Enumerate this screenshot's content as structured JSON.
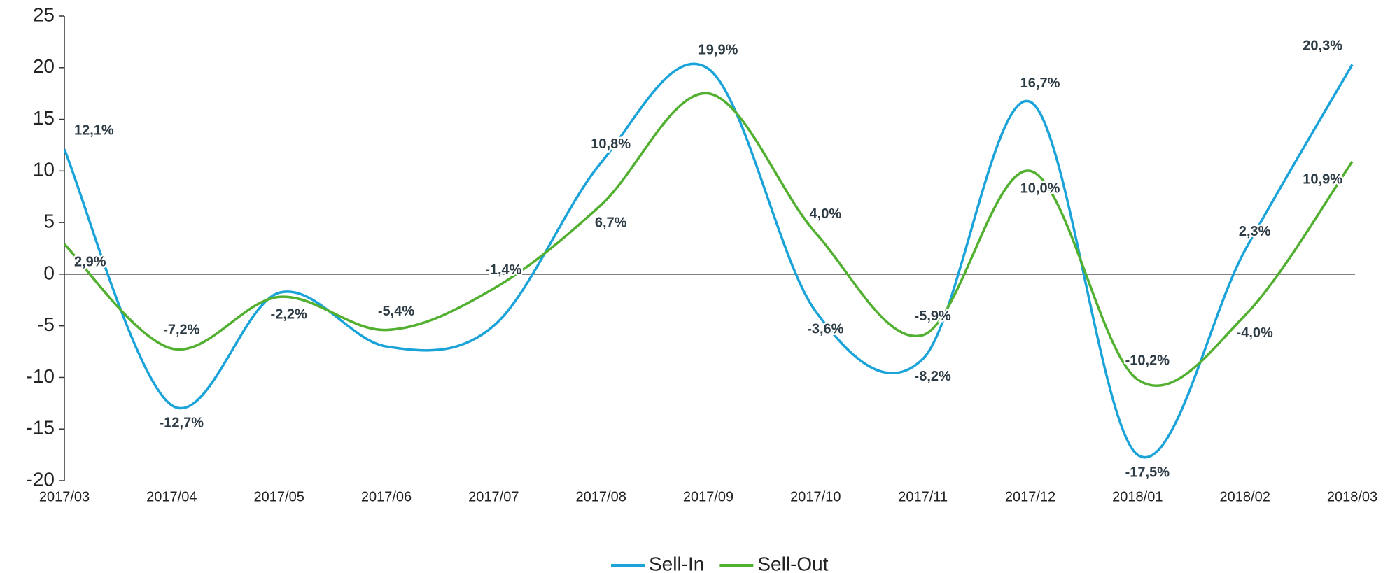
{
  "chart_data": {
    "type": "line",
    "categories": [
      "2017/03",
      "2017/04",
      "2017/05",
      "2017/06",
      "2017/07",
      "2017/08",
      "2017/09",
      "2017/10",
      "2017/11",
      "2017/12",
      "2018/01",
      "2018/02",
      "2018/03"
    ],
    "series": [
      {
        "name": "Sell-In",
        "color": "#1aa3d9",
        "values": [
          12.1,
          -12.7,
          -1.8,
          -7.0,
          -5.0,
          10.8,
          19.9,
          -3.6,
          -8.2,
          16.7,
          -17.5,
          2.3,
          20.3
        ],
        "value_labels": [
          "12,1%",
          "-12,7%",
          null,
          null,
          null,
          "10,8%",
          "19,9%",
          "-3,6%",
          "-8,2%",
          "16,7%",
          "-17,5%",
          "2,3%",
          "20,3%"
        ]
      },
      {
        "name": "Sell-Out",
        "color": "#52b030",
        "values": [
          2.9,
          -7.2,
          -2.2,
          -5.4,
          -1.4,
          6.7,
          17.5,
          4.0,
          -5.9,
          10.0,
          -10.2,
          -4.0,
          10.9
        ],
        "value_labels": [
          "2,9%",
          "-7,2%",
          "-2,2%",
          "-5,4%",
          "-1,4%",
          "6,7%",
          null,
          "4,0%",
          "-5,9%",
          "10,0%",
          "-10,2%",
          "-4,0%",
          "10,9%"
        ]
      }
    ],
    "ylim": [
      -20,
      25
    ],
    "yticks": [
      -20,
      -15,
      -10,
      -5,
      0,
      5,
      10,
      15,
      20,
      25
    ],
    "legend": "bottom"
  }
}
